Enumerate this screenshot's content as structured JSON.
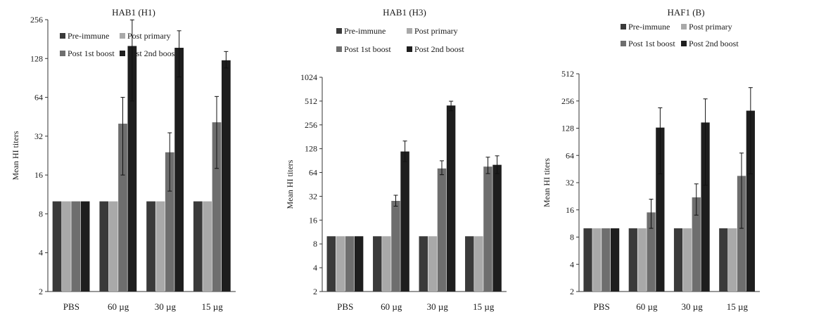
{
  "legend_labels": [
    "Pre-immune",
    "Post primary",
    "Post 1st boost",
    "Post 2nd boost"
  ],
  "series_colors": [
    "#3a3a3a",
    "#a9a9a9",
    "#6e6e6e",
    "#1e1e1e"
  ],
  "chart_data": [
    {
      "type": "bar",
      "title": "HAB1 (H1)",
      "ylabel": "Mean HI titers",
      "yscale": "log2",
      "ylim": [
        2,
        256
      ],
      "yticks": [
        "2",
        "4",
        "8",
        "16",
        "32",
        "64",
        "128",
        "256"
      ],
      "categories": [
        "PBS",
        "60 µg",
        "30 µg",
        "15 µg"
      ],
      "legend": "top",
      "series": [
        {
          "name": "Pre-immune",
          "values": [
            10,
            10,
            10,
            10
          ],
          "errors": [
            null,
            null,
            null,
            null
          ]
        },
        {
          "name": "Post primary",
          "values": [
            10,
            10,
            10,
            10
          ],
          "errors": [
            null,
            null,
            null,
            null
          ]
        },
        {
          "name": "Post 1st boost",
          "values": [
            10,
            40,
            24,
            41
          ],
          "errors": [
            null,
            [
              16,
              64
            ],
            [
              12,
              34
            ],
            [
              18,
              65
            ]
          ]
        },
        {
          "name": "Post 2nd boost",
          "values": [
            10,
            160,
            155,
            124
          ],
          "errors": [
            null,
            [
              60,
              255
            ],
            [
              92,
              210
            ],
            [
              108,
              145
            ]
          ]
        }
      ]
    },
    {
      "type": "bar",
      "title": "HAB1 (H3)",
      "ylabel": "Mean HI titers",
      "yscale": "log2",
      "ylim": [
        2,
        1024
      ],
      "yticks": [
        "2",
        "4",
        "8",
        "16",
        "32",
        "64",
        "128",
        "256",
        "512",
        "1024"
      ],
      "categories": [
        "PBS",
        "60 µg",
        "30 µg",
        "15 µg"
      ],
      "legend": "top",
      "series": [
        {
          "name": "Pre-immune",
          "values": [
            10,
            10,
            10,
            10
          ],
          "errors": [
            null,
            null,
            null,
            null
          ]
        },
        {
          "name": "Post primary",
          "values": [
            10,
            10,
            10,
            10
          ],
          "errors": [
            null,
            null,
            null,
            null
          ]
        },
        {
          "name": "Post 1st boost",
          "values": [
            10,
            28,
            72,
            76
          ],
          "errors": [
            null,
            [
              24,
              33
            ],
            [
              60,
              90
            ],
            [
              62,
              100
            ]
          ]
        },
        {
          "name": "Post 2nd boost",
          "values": [
            10,
            118,
            450,
            80
          ],
          "errors": [
            null,
            [
              88,
              160
            ],
            [
              385,
              510
            ],
            [
              62,
              104
            ]
          ]
        }
      ]
    },
    {
      "type": "bar",
      "title": "HAF1 (B)",
      "ylabel": "Mean HI titers",
      "yscale": "log2",
      "ylim": [
        2,
        512
      ],
      "yticks": [
        "2",
        "4",
        "8",
        "16",
        "32",
        "64",
        "128",
        "256",
        "512"
      ],
      "categories": [
        "PBS",
        "60 µg",
        "30 µg",
        "15 µg"
      ],
      "legend": "top",
      "series": [
        {
          "name": "Pre-immune",
          "values": [
            10,
            10,
            10,
            10
          ],
          "errors": [
            null,
            null,
            null,
            null
          ]
        },
        {
          "name": "Post primary",
          "values": [
            10,
            10,
            10,
            10
          ],
          "errors": [
            null,
            null,
            null,
            null
          ]
        },
        {
          "name": "Post 1st boost",
          "values": [
            10,
            15,
            22,
            38
          ],
          "errors": [
            null,
            [
              10,
              21
            ],
            [
              14,
              31
            ],
            [
              10,
              68
            ]
          ]
        },
        {
          "name": "Post 2nd boost",
          "values": [
            10,
            130,
            148,
            200
          ],
          "errors": [
            null,
            [
              40,
              215
            ],
            [
              30,
              270
            ],
            [
              40,
              360
            ]
          ]
        }
      ]
    }
  ]
}
